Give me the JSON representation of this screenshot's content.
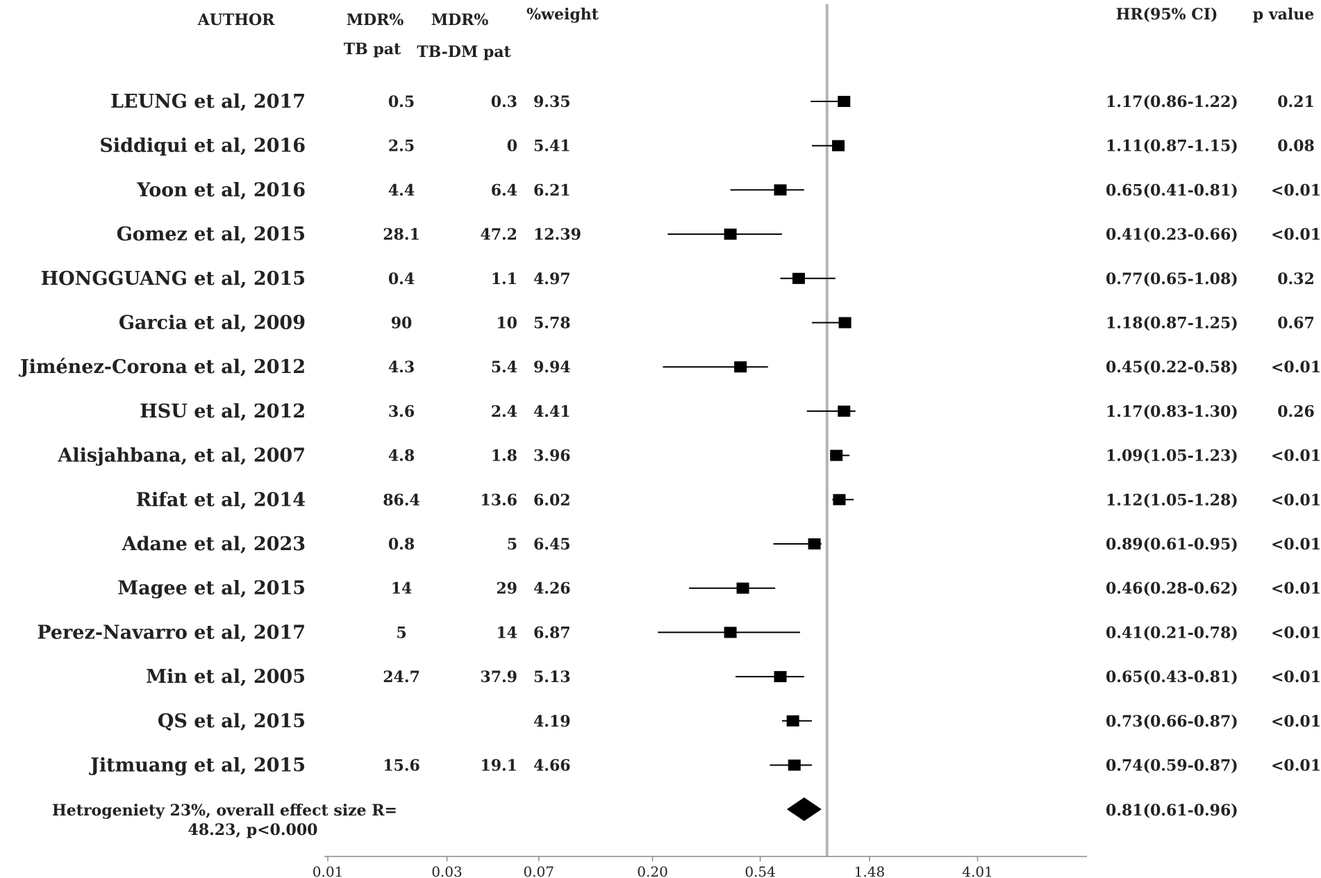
{
  "headers": {
    "author": "AUTHOR",
    "mdr_tb_line1": "MDR%",
    "mdr_tb_line2": "TB pat",
    "mdr_tbdm_line1": "MDR%",
    "mdr_tbdm_line2": "TB-DM pat",
    "weight": "%weight",
    "hr": "HR(95% CI)",
    "pvalue": "p value"
  },
  "overall_label": {
    "line1": "Hetrogeniety 23%, overall effect size R=",
    "line2": "48.23, p<0.000"
  },
  "chart_data": {
    "type": "forest",
    "x_scale": "log",
    "xlim": [
      0.01,
      11
    ],
    "x_ticks": [
      {
        "value": 0.01,
        "label": "0.01"
      },
      {
        "value": 0.03,
        "label": "0.03"
      },
      {
        "value": 0.07,
        "label": "0.07"
      },
      {
        "value": 0.2,
        "label": "0.20"
      },
      {
        "value": 0.54,
        "label": "0.54"
      },
      {
        "value": 1.48,
        "label": "1.48"
      },
      {
        "value": 4.01,
        "label": "4.01"
      }
    ],
    "reference_line": 1.0,
    "studies": [
      {
        "author": "LEUNG et al, 2017",
        "mdr_tb": "0.5",
        "mdr_tbdm": "0.3",
        "weight": "9.35",
        "hr": 1.17,
        "lo": 0.86,
        "hi": 1.22,
        "hr_text": "1.17(0.86-1.22)",
        "p": "0.21"
      },
      {
        "author": "Siddiqui  et al, 2016",
        "mdr_tb": "2.5",
        "mdr_tbdm": "0",
        "weight": "5.41",
        "hr": 1.11,
        "lo": 0.87,
        "hi": 1.15,
        "hr_text": "1.11(0.87-1.15)",
        "p": "0.08"
      },
      {
        "author": "Yoon et al, 2016",
        "mdr_tb": "4.4",
        "mdr_tbdm": "6.4",
        "weight": "6.21",
        "hr": 0.65,
        "lo": 0.41,
        "hi": 0.81,
        "hr_text": "0.65(0.41-0.81)",
        "p": "<0.01"
      },
      {
        "author": "Gomez et al, 2015",
        "mdr_tb": "28.1",
        "mdr_tbdm": "47.2",
        "weight": "12.39",
        "hr": 0.41,
        "lo": 0.23,
        "hi": 0.66,
        "hr_text": "0.41(0.23-0.66)",
        "p": "<0.01"
      },
      {
        "author": "HONGGUANG et al, 2015",
        "mdr_tb": "0.4",
        "mdr_tbdm": "1.1",
        "weight": "4.97",
        "hr": 0.77,
        "lo": 0.65,
        "hi": 1.08,
        "hr_text": "0.77(0.65-1.08)",
        "p": "0.32"
      },
      {
        "author": "Garcia et al, 2009",
        "mdr_tb": "90",
        "mdr_tbdm": "10",
        "weight": "5.78",
        "hr": 1.18,
        "lo": 0.87,
        "hi": 1.25,
        "hr_text": "1.18(0.87-1.25)",
        "p": "0.67"
      },
      {
        "author": "Jiménez-Corona et al, 2012",
        "mdr_tb": "4.3",
        "mdr_tbdm": "5.4",
        "weight": "9.94",
        "hr": 0.45,
        "lo": 0.22,
        "hi": 0.58,
        "hr_text": "0.45(0.22-0.58)",
        "p": "<0.01"
      },
      {
        "author": "HSU et al, 2012",
        "mdr_tb": "3.6",
        "mdr_tbdm": "2.4",
        "weight": "4.41",
        "hr": 1.17,
        "lo": 0.83,
        "hi": 1.3,
        "hr_text": "1.17(0.83-1.30)",
        "p": "0.26"
      },
      {
        "author": "Alisjahbana, et al, 2007",
        "mdr_tb": "4.8",
        "mdr_tbdm": "1.8",
        "weight": "3.96",
        "hr": 1.09,
        "lo": 1.05,
        "hi": 1.23,
        "hr_text": "1.09(1.05-1.23)",
        "p": "<0.01"
      },
      {
        "author": "Rifat et al, 2014",
        "mdr_tb": "86.4",
        "mdr_tbdm": "13.6",
        "weight": "6.02",
        "hr": 1.12,
        "lo": 1.05,
        "hi": 1.28,
        "hr_text": "1.12(1.05-1.28)",
        "p": "<0.01"
      },
      {
        "author": "Adane et al, 2023",
        "mdr_tb": "0.8",
        "mdr_tbdm": "5",
        "weight": "6.45",
        "hr": 0.89,
        "lo": 0.61,
        "hi": 0.95,
        "hr_text": "0.89(0.61-0.95)",
        "p": "<0.01"
      },
      {
        "author": "Magee et al, 2015",
        "mdr_tb": "14",
        "mdr_tbdm": "29",
        "weight": "4.26",
        "hr": 0.46,
        "lo": 0.28,
        "hi": 0.62,
        "hr_text": "0.46(0.28-0.62)",
        "p": "<0.01"
      },
      {
        "author": "Perez-Navarro et al, 2017",
        "mdr_tb": "5",
        "mdr_tbdm": "14",
        "weight": "6.87",
        "hr": 0.41,
        "lo": 0.21,
        "hi": 0.78,
        "hr_text": "0.41(0.21-0.78)",
        "p": "<0.01"
      },
      {
        "author": "Min et al, 2005",
        "mdr_tb": "24.7",
        "mdr_tbdm": "37.9",
        "weight": "5.13",
        "hr": 0.65,
        "lo": 0.43,
        "hi": 0.81,
        "hr_text": "0.65(0.43-0.81)",
        "p": "<0.01"
      },
      {
        "author": "QS et al, 2015",
        "mdr_tb": "",
        "mdr_tbdm": "",
        "weight": "4.19",
        "hr": 0.73,
        "lo": 0.66,
        "hi": 0.87,
        "hr_text": "0.73(0.66-0.87)",
        "p": "<0.01"
      },
      {
        "author": "Jitmuang et al, 2015",
        "mdr_tb": "15.6",
        "mdr_tbdm": "19.1",
        "weight": "4.66",
        "hr": 0.74,
        "lo": 0.59,
        "hi": 0.87,
        "hr_text": "0.74(0.59-0.87)",
        "p": "<0.01"
      }
    ],
    "overall": {
      "hr": 0.81,
      "lo": 0.61,
      "hi": 0.96,
      "hr_text": "0.81(0.61-0.96)"
    },
    "colors": {
      "marker": "#000000",
      "reference_line": "#b5b5b5",
      "axis": "#8a8a8a"
    }
  }
}
